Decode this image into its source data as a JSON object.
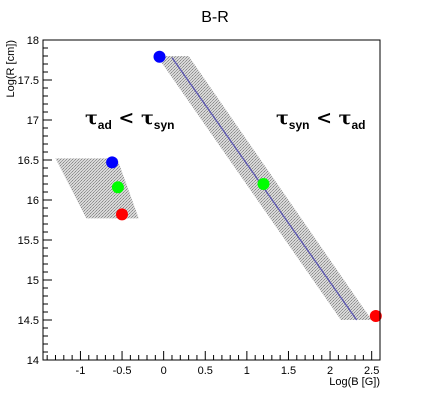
{
  "chart_data": {
    "type": "scatter",
    "title": "B-R",
    "xlabel": "Log(B [G])",
    "ylabel": "Log(R [cm])",
    "xlim": [
      -1.45,
      2.6
    ],
    "ylim": [
      14,
      18
    ],
    "x_ticks": [
      "-1",
      "-0.5",
      "0",
      "0.5",
      "1",
      "1.5",
      "2",
      "2.5"
    ],
    "y_ticks": [
      "14",
      "14.5",
      "15",
      "15.5",
      "16",
      "16.5",
      "17",
      "17.5",
      "18"
    ],
    "grid": false,
    "bands": [
      {
        "name": "tau_ad < tau_syn region",
        "polygon": [
          [
            -1.3,
            16.52
          ],
          [
            -0.56,
            16.52
          ],
          [
            -0.3,
            15.77
          ],
          [
            -0.93,
            15.77
          ]
        ]
      },
      {
        "name": "tau_syn < tau_ad region",
        "polygon": [
          [
            -0.08,
            17.8
          ],
          [
            0.3,
            17.8
          ],
          [
            2.5,
            14.5
          ],
          [
            2.13,
            14.5
          ]
        ]
      }
    ],
    "lines": [
      {
        "color": "#5a55b0",
        "points": [
          [
            0.1,
            17.78
          ],
          [
            2.32,
            14.5
          ]
        ]
      }
    ],
    "points": [
      {
        "x": -0.05,
        "y": 17.79,
        "color": "#0000ff"
      },
      {
        "x": 1.2,
        "y": 16.2,
        "color": "#00ff00"
      },
      {
        "x": 2.55,
        "y": 14.55,
        "color": "#ff0000"
      },
      {
        "x": -0.62,
        "y": 16.47,
        "color": "#0000ff"
      },
      {
        "x": -0.55,
        "y": 16.16,
        "color": "#00ff00"
      },
      {
        "x": -0.5,
        "y": 15.82,
        "color": "#ff0000"
      }
    ],
    "annotations": [
      {
        "left_sym": "τ",
        "left_sub": "ad",
        "op": " < ",
        "right_sym": "τ",
        "right_sub": "syn"
      },
      {
        "left_sym": "τ",
        "left_sub": "syn",
        "op": " < ",
        "right_sym": "τ",
        "right_sub": "ad"
      }
    ]
  }
}
